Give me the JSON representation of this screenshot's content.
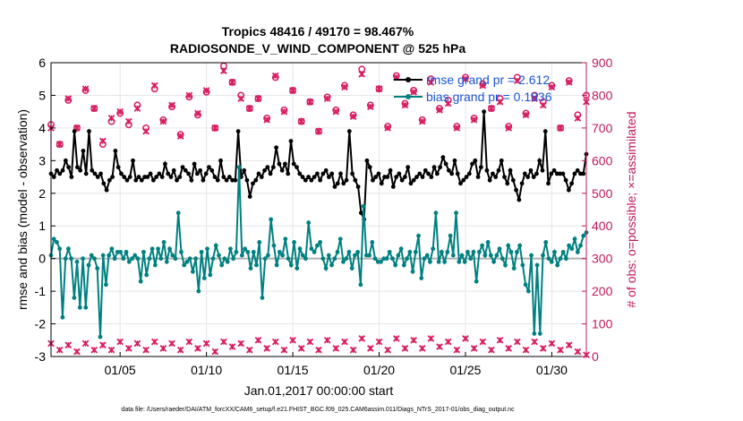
{
  "chart_data": {
    "type": "line",
    "title": "Tropics 48416 / 49170 = 98.467%",
    "subtitle": "RADIOSONDE_V_WIND_COMPONENT @ 525 hPa",
    "xlabel": "Jan.01,2017 00:00:00 start",
    "ylabel": "rmse and bias (model - observation)",
    "ylabel_right": "# of obs: o=possible; ×=assimilated",
    "footnote": "data file: /Users/raeder/DAI/ATM_forcXX/CAM6_setup/f.e21.FHIST_BGC.f09_025.CAM6assim.011/Diags_NTrS_2017-01/obs_diag_output.nc",
    "xlim": [
      1,
      32
    ],
    "ylim": [
      -3,
      6
    ],
    "ylim_right": [
      0,
      900
    ],
    "x_ticks": [
      5,
      10,
      15,
      20,
      25,
      30
    ],
    "x_tick_labels": [
      "01/05",
      "01/10",
      "01/15",
      "01/20",
      "01/25",
      "01/30"
    ],
    "y_ticks": [
      -3,
      -2,
      -1,
      0,
      1,
      2,
      3,
      4,
      5,
      6
    ],
    "y_tick_labels": [
      "-3",
      "-2",
      "-1",
      "0",
      "1",
      "2",
      "3",
      "4",
      "5",
      "6"
    ],
    "y_ticks_right": [
      0,
      100,
      200,
      300,
      400,
      500,
      600,
      700,
      800,
      900
    ],
    "y_tick_labels_right": [
      "0",
      "100",
      "200",
      "300",
      "400",
      "500",
      "600",
      "700",
      "800",
      "900"
    ],
    "legend": [
      "rmse grand pr = 2.612",
      "bias grand pr = 0.1836"
    ],
    "legend_position": "top-right",
    "colors": {
      "rmse": "#000000",
      "bias": "#008080",
      "obs": "#d81b60",
      "zero": "#b0b0b0",
      "right_axis": "#c2185b",
      "legend_text": "#1a55d6"
    },
    "series": [
      {
        "name": "rmse",
        "axis": "left",
        "color": "#000000",
        "values": [
          2.6,
          2.5,
          2.7,
          2.6,
          2.7,
          3.0,
          2.8,
          2.5,
          3.9,
          2.8,
          2.7,
          3.3,
          2.6,
          3.9,
          2.7,
          2.6,
          2.5,
          2.6,
          2.3,
          2.1,
          2.4,
          2.5,
          3.3,
          2.8,
          2.6,
          2.5,
          2.4,
          2.5,
          3.0,
          2.4,
          2.5,
          2.4,
          2.5,
          2.5,
          2.6,
          2.4,
          2.5,
          2.6,
          2.5,
          2.9,
          2.6,
          2.5,
          2.7,
          2.4,
          2.5,
          2.8,
          2.7,
          2.6,
          2.4,
          2.9,
          2.6,
          2.7,
          2.4,
          2.6,
          2.8,
          2.7,
          2.5,
          2.4,
          3.0,
          2.5,
          2.4,
          2.5,
          2.4,
          2.4,
          3.9,
          2.5,
          2.7,
          2.4,
          1.9,
          2.3,
          2.4,
          2.6,
          2.5,
          2.7,
          2.8,
          2.6,
          2.8,
          3.4,
          2.9,
          2.7,
          2.9,
          2.6,
          3.6,
          2.9,
          2.8,
          2.6,
          2.5,
          2.4,
          2.5,
          2.4,
          2.5,
          2.6,
          2.4,
          2.6,
          2.7,
          2.5,
          2.6,
          2.2,
          2.3,
          2.6,
          2.3,
          2.4,
          3.9,
          2.6,
          2.4,
          2.2,
          1.4,
          1.2,
          3.0,
          2.8,
          2.4,
          2.5,
          2.6,
          2.3,
          2.5,
          2.5,
          2.7,
          2.2,
          2.5,
          2.6,
          2.4,
          2.5,
          2.8,
          2.3,
          2.4,
          2.5,
          2.6,
          2.5,
          2.7,
          2.6,
          2.5,
          2.8,
          2.6,
          2.8,
          3.1,
          2.9,
          2.7,
          2.6,
          3.0,
          2.6,
          2.3,
          2.4,
          2.5,
          2.6,
          2.9,
          3.0,
          2.5,
          2.8,
          4.5,
          2.7,
          2.4,
          2.6,
          2.5,
          2.7,
          3.0,
          2.5,
          2.3,
          2.7,
          2.4,
          2.1,
          1.8,
          2.3,
          2.6,
          2.5,
          2.7,
          2.5,
          2.6,
          3.0,
          2.7,
          3.9,
          2.3,
          2.6,
          2.7,
          2.6,
          2.6,
          2.6,
          2.4,
          2.1,
          2.3,
          2.6,
          2.7,
          2.6,
          2.6,
          3.2
        ]
      },
      {
        "name": "bias",
        "axis": "left",
        "color": "#008080",
        "values": [
          0.1,
          0.6,
          0.5,
          0.3,
          -1.8,
          0.0,
          0.3,
          0.0,
          -1.2,
          -0.1,
          -1.5,
          0.0,
          -1.5,
          -0.2,
          0.1,
          0.0,
          -0.3,
          -2.4,
          0.1,
          -0.8,
          0.1,
          0.3,
          0.0,
          0.2,
          0.2,
          0.0,
          0.2,
          -0.1,
          0.0,
          0.1,
          0.0,
          -0.7,
          0.2,
          -0.5,
          0.0,
          0.3,
          -0.2,
          0.3,
          0.0,
          0.5,
          -0.1,
          0.3,
          0.1,
          0.0,
          1.4,
          0.2,
          -0.2,
          -0.1,
          0.0,
          -0.4,
          0.0,
          -1.0,
          0.2,
          -0.6,
          0.3,
          -0.5,
          0.0,
          0.4,
          0.1,
          -0.2,
          0.0,
          -0.1,
          0.3,
          0.0,
          0.2,
          2.8,
          0.1,
          0.3,
          0.2,
          -0.3,
          0.2,
          -0.2,
          0.5,
          -1.2,
          0.0,
          0.1,
          1.2,
          0.4,
          -0.2,
          0.2,
          0.1,
          0.6,
          0.0,
          -0.2,
          0.5,
          -0.3,
          0.3,
          0.1,
          0.0,
          1.1,
          0.3,
          0.2,
          0.4,
          0.5,
          0.0,
          -0.3,
          0.1,
          -0.2,
          0.0,
          0.2,
          0.6,
          -0.1,
          0.0,
          0.2,
          -0.3,
          0.1,
          0.2,
          -0.8,
          1.6,
          0.1,
          0.1,
          0.5,
          0.0,
          -0.1,
          -0.1,
          0.0,
          0.0,
          0.2,
          0.0,
          -0.2,
          0.1,
          0.3,
          -0.2,
          0.0,
          0.2,
          -0.4,
          0.2,
          0.7,
          -0.6,
          0.0,
          0.1,
          -0.1,
          0.3,
          1.4,
          -0.1,
          0.2,
          -0.1,
          0.2,
          0.7,
          0.1,
          1.4,
          -0.1,
          0.1,
          -0.1,
          0.2,
          0.0,
          0.2,
          -0.7,
          0.2,
          0.4,
          0.1,
          0.5,
          0.1,
          -0.1,
          0.1,
          0.3,
          0.0,
          -0.2,
          0.4,
          0.2,
          -0.3,
          0.2,
          0.4,
          -0.2,
          -0.8,
          -1.0,
          0.1,
          -2.3,
          -0.2,
          -2.3,
          0.1,
          0.5,
          0.0,
          -0.1,
          0.2,
          -0.2,
          0.0,
          0.2,
          0.0,
          0.4,
          0.3,
          0.6,
          0.2,
          0.4,
          0.7,
          0.8
        ]
      },
      {
        "name": "obs_possible",
        "axis": "right",
        "marker": "o",
        "color": "#d81b60",
        "x": [
          1.0,
          1.5,
          2.0,
          2.5,
          3.0,
          3.5,
          4.0,
          4.5,
          5.0,
          5.5,
          6.0,
          6.5,
          7.0,
          7.5,
          8.0,
          8.5,
          9.0,
          9.5,
          10.0,
          10.5,
          11.0,
          11.5,
          12.0,
          12.5,
          13.0,
          13.5,
          14.0,
          14.5,
          15.0,
          15.5,
          16.0,
          16.5,
          17.0,
          17.5,
          18.0,
          18.5,
          19.0,
          19.5,
          20.0,
          20.5,
          21.0,
          21.5,
          22.0,
          22.5,
          23.0,
          23.5,
          24.0,
          24.5,
          25.0,
          25.5,
          26.0,
          26.5,
          27.0,
          27.5,
          28.0,
          28.5,
          29.0,
          29.5,
          30.0,
          30.5,
          31.0,
          31.5,
          32.0
        ],
        "values": [
          710,
          650,
          785,
          700,
          815,
          760,
          650,
          720,
          745,
          710,
          770,
          700,
          820,
          725,
          765,
          680,
          795,
          740,
          810,
          700,
          890,
          840,
          800,
          760,
          790,
          730,
          855,
          755,
          815,
          720,
          780,
          690,
          795,
          755,
          830,
          740,
          880,
          770,
          820,
          705,
          860,
          775,
          815,
          725,
          850,
          760,
          785,
          705,
          855,
          730,
          835,
          760,
          790,
          705,
          855,
          745,
          800,
          780,
          830,
          700,
          845,
          740,
          800
        ]
      },
      {
        "name": "obs_assimilated",
        "axis": "right",
        "marker": "x",
        "color": "#d81b60",
        "x": [
          1.0,
          1.5,
          2.0,
          2.5,
          3.0,
          3.5,
          4.0,
          4.5,
          5.0,
          5.5,
          6.0,
          6.5,
          7.0,
          7.5,
          8.0,
          8.5,
          9.0,
          9.5,
          10.0,
          10.5,
          11.0,
          11.5,
          12.0,
          12.5,
          13.0,
          13.5,
          14.0,
          14.5,
          15.0,
          15.5,
          16.0,
          16.5,
          17.0,
          17.5,
          18.0,
          18.5,
          19.0,
          19.5,
          20.0,
          20.5,
          21.0,
          21.5,
          22.0,
          22.5,
          23.0,
          23.5,
          24.0,
          24.5,
          25.0,
          25.5,
          26.0,
          26.5,
          27.0,
          27.5,
          28.0,
          28.5,
          29.0,
          29.5,
          30.0,
          30.5,
          31.0,
          31.5,
          32.0
        ],
        "values": [
          700,
          650,
          790,
          700,
          820,
          760,
          660,
          730,
          750,
          720,
          760,
          690,
          830,
          720,
          770,
          675,
          800,
          745,
          815,
          700,
          875,
          840,
          790,
          760,
          790,
          725,
          860,
          750,
          815,
          720,
          780,
          690,
          790,
          750,
          825,
          735,
          865,
          765,
          820,
          700,
          855,
          770,
          810,
          720,
          840,
          755,
          775,
          700,
          850,
          725,
          830,
          760,
          780,
          700,
          845,
          740,
          790,
          770,
          825,
          700,
          840,
          730,
          780
        ]
      },
      {
        "name": "obs_assimilated_bottom",
        "axis": "right",
        "marker": "x",
        "color": "#d81b60",
        "x": [
          1.0,
          1.5,
          2.0,
          2.5,
          3.0,
          3.5,
          4.0,
          4.5,
          5.0,
          5.5,
          6.0,
          6.5,
          7.0,
          7.5,
          8.0,
          8.5,
          9.0,
          9.5,
          10.0,
          10.5,
          11.0,
          11.5,
          12.0,
          12.5,
          13.0,
          13.5,
          14.0,
          14.5,
          15.0,
          15.5,
          16.0,
          16.5,
          17.0,
          17.5,
          18.0,
          18.5,
          19.0,
          19.5,
          20.0,
          20.5,
          21.0,
          21.5,
          22.0,
          22.5,
          23.0,
          23.5,
          24.0,
          24.5,
          25.0,
          25.5,
          26.0,
          26.5,
          27.0,
          27.5,
          28.0,
          28.5,
          29.0,
          29.5,
          30.0,
          30.5,
          31.0,
          31.5,
          32.0
        ],
        "values": [
          40,
          20,
          35,
          15,
          40,
          20,
          35,
          20,
          45,
          25,
          40,
          20,
          45,
          25,
          40,
          20,
          45,
          25,
          40,
          15,
          45,
          30,
          40,
          20,
          50,
          25,
          45,
          20,
          50,
          25,
          45,
          20,
          50,
          25,
          45,
          20,
          55,
          25,
          45,
          20,
          55,
          25,
          50,
          25,
          55,
          30,
          45,
          20,
          55,
          25,
          45,
          20,
          50,
          25,
          45,
          20,
          45,
          25,
          40,
          20,
          35,
          15,
          5
        ]
      }
    ]
  }
}
